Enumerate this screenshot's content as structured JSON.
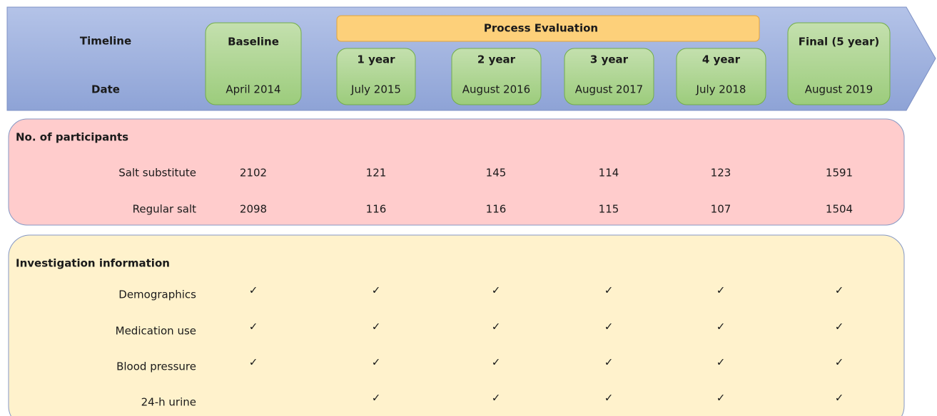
{
  "header": {
    "timeline_label": "Timeline",
    "date_label": "Date",
    "process_evaluation": "Process Evaluation"
  },
  "stages": [
    {
      "label": "Baseline",
      "date": "April 2014"
    },
    {
      "label": "1 year",
      "date": "July 2015"
    },
    {
      "label": "2 year",
      "date": "August 2016"
    },
    {
      "label": "3 year",
      "date": "August 2017"
    },
    {
      "label": "4 year",
      "date": "July 2018"
    },
    {
      "label": "Final (5 year)",
      "date": "August 2019"
    }
  ],
  "participants": {
    "title": "No. of participants",
    "rows": [
      {
        "label": "Salt substitute",
        "values": [
          2102,
          121,
          145,
          114,
          123,
          1591
        ]
      },
      {
        "label": "Regular salt",
        "values": [
          2098,
          116,
          116,
          115,
          107,
          1504
        ]
      }
    ]
  },
  "investigation": {
    "title": "Investigation information",
    "rows": [
      {
        "label": "Demographics",
        "checks": [
          "✓",
          "✓",
          "✓",
          "✓",
          "✓",
          "✓"
        ]
      },
      {
        "label": "Medication use",
        "checks": [
          "✓",
          "✓",
          "✓",
          "✓",
          "✓",
          "✓"
        ]
      },
      {
        "label": "Blood pressure",
        "checks": [
          "✓",
          "✓",
          "✓",
          "✓",
          "✓",
          "✓"
        ]
      },
      {
        "label": "24-h urine",
        "checks": [
          null,
          "✓",
          "✓",
          "✓",
          "✓",
          "✓"
        ]
      }
    ]
  }
}
